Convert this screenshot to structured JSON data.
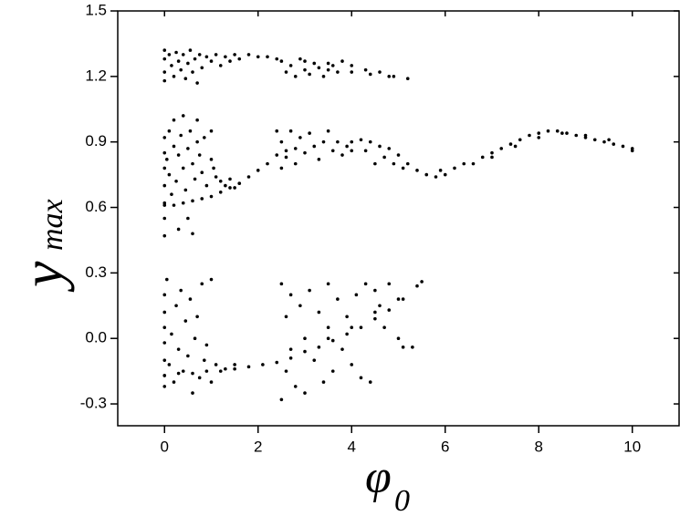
{
  "chart_data": {
    "type": "scatter",
    "xlabel": {
      "text": "φ",
      "subscript": "0"
    },
    "ylabel": {
      "text": "y",
      "subscript": "max"
    },
    "color": "#000000",
    "xlim": [
      -1,
      11
    ],
    "xticks": [
      0,
      2,
      4,
      6,
      8,
      10
    ],
    "ylim": [
      -0.4,
      1.5
    ],
    "yticks": [
      -0.3,
      {
        "value": 0,
        "label": "0.0"
      },
      0.3,
      0.6,
      0.9,
      1.2,
      1.5
    ],
    "x": [
      0,
      0,
      0,
      0,
      0.1,
      0.15,
      0.2,
      0.25,
      0.3,
      0.35,
      0.4,
      0.45,
      0.5,
      0.55,
      0.6,
      0.65,
      0.7,
      0.75,
      0.8,
      0.9,
      1.0,
      1.1,
      1.2,
      1.3,
      1.4,
      1.5,
      1.6,
      1.8,
      2.0,
      2.2,
      2.4,
      3.0,
      3.5,
      4.0,
      4.3,
      4.6,
      4.9,
      5.2,
      4.0,
      4.4,
      4.8,
      2.5,
      2.6,
      2.7,
      2.8,
      2.9,
      3.0,
      3.1,
      3.2,
      3.3,
      3.4,
      3.5,
      3.6,
      3.7,
      3.8,
      0,
      0,
      0,
      0,
      0,
      0,
      0,
      0.05,
      0.1,
      0.1,
      0.15,
      0.2,
      0.2,
      0.25,
      0.3,
      0.3,
      0.35,
      0.4,
      0.4,
      0.45,
      0.5,
      0.5,
      0.55,
      0.6,
      0.6,
      0.65,
      0.7,
      0.7,
      0.75,
      0.8,
      0.85,
      0.9,
      1.0,
      1.0,
      1.05,
      1.1,
      1.2,
      1.3,
      1.4,
      1.5,
      1.6,
      0,
      0.2,
      0.4,
      0.6,
      0.8,
      1.0,
      1.2,
      1.4,
      1.6,
      1.8,
      2.0,
      2.2,
      2.4,
      2.6,
      2.4,
      2.5,
      2.5,
      2.6,
      2.7,
      2.8,
      2.8,
      2.9,
      3.0,
      3.1,
      3.2,
      3.3,
      3.4,
      3.5,
      3.6,
      3.7,
      3.8,
      3.9,
      4.0,
      4.0,
      4.2,
      4.4,
      4.6,
      4.8,
      5.0,
      5.2,
      5.4,
      4.3,
      4.5,
      4.7,
      4.9,
      5.1,
      5.6,
      5.8,
      5.9,
      6.0,
      6.2,
      6.4,
      6.6,
      6.8,
      7.0,
      7.2,
      7.4,
      7.6,
      7.8,
      8.0,
      8.2,
      8.4,
      8.6,
      8.8,
      9.0,
      9.2,
      9.4,
      9.6,
      9.8,
      10.0,
      7.0,
      7.5,
      8.0,
      8.5,
      9.0,
      9.5,
      10.0,
      0,
      0,
      0,
      0,
      0,
      0,
      0,
      0.05,
      0.1,
      0.15,
      0.2,
      0.25,
      0.3,
      0.35,
      0.4,
      0.45,
      0.5,
      0.55,
      0.6,
      0.65,
      0.7,
      0.75,
      0.8,
      0.85,
      0.9,
      1.0,
      1.0,
      1.1,
      1.3,
      1.5,
      0,
      0.3,
      0.6,
      0.9,
      1.2,
      1.5,
      1.8,
      2.1,
      2.4,
      2.7,
      3.0,
      3.3,
      3.6,
      3.9,
      4.2,
      4.5,
      4.8,
      5.1,
      5.4,
      5.5,
      3.5,
      4.0,
      4.5,
      5.0,
      2.5,
      2.5,
      2.6,
      2.6,
      2.7,
      2.7,
      2.8,
      2.9,
      3.0,
      3.0,
      3.1,
      3.2,
      3.3,
      3.4,
      3.5,
      3.5,
      3.6,
      3.7,
      3.8,
      3.9,
      4.0,
      4.1,
      4.2,
      4.3,
      4.4,
      4.5,
      4.6,
      4.7,
      4.8,
      5.0,
      5.3,
      5.1
    ],
    "values": [
      1.32,
      1.28,
      1.22,
      1.18,
      1.3,
      1.25,
      1.2,
      1.31,
      1.27,
      1.23,
      1.3,
      1.19,
      1.26,
      1.32,
      1.22,
      1.28,
      1.17,
      1.3,
      1.24,
      1.29,
      1.27,
      1.3,
      1.25,
      1.29,
      1.27,
      1.3,
      1.28,
      1.3,
      1.29,
      1.29,
      1.28,
      1.27,
      1.26,
      1.25,
      1.23,
      1.22,
      1.2,
      1.19,
      1.22,
      1.21,
      1.2,
      1.27,
      1.22,
      1.25,
      1.2,
      1.28,
      1.23,
      1.21,
      1.26,
      1.24,
      1.2,
      1.23,
      1.25,
      1.22,
      1.27,
      0.47,
      0.55,
      0.62,
      0.7,
      0.78,
      0.85,
      0.92,
      0.82,
      0.75,
      0.95,
      0.66,
      0.88,
      1.0,
      0.72,
      0.84,
      0.5,
      0.93,
      0.78,
      1.02,
      0.68,
      0.87,
      0.55,
      0.95,
      0.8,
      0.48,
      0.73,
      0.9,
      1.0,
      0.84,
      0.76,
      0.92,
      0.7,
      0.82,
      0.95,
      0.78,
      0.74,
      0.72,
      0.7,
      0.73,
      0.69,
      0.71,
      0.61,
      0.61,
      0.62,
      0.63,
      0.64,
      0.65,
      0.67,
      0.69,
      0.71,
      0.74,
      0.77,
      0.8,
      0.84,
      0.86,
      0.95,
      0.78,
      0.9,
      0.83,
      0.95,
      0.87,
      0.8,
      0.92,
      0.85,
      0.94,
      0.88,
      0.82,
      0.9,
      0.95,
      0.86,
      0.9,
      0.84,
      0.88,
      0.86,
      0.9,
      0.91,
      0.9,
      0.88,
      0.87,
      0.84,
      0.8,
      0.77,
      0.86,
      0.8,
      0.83,
      0.8,
      0.78,
      0.75,
      0.74,
      0.77,
      0.75,
      0.78,
      0.8,
      0.8,
      0.83,
      0.85,
      0.87,
      0.89,
      0.91,
      0.93,
      0.94,
      0.95,
      0.95,
      0.94,
      0.93,
      0.92,
      0.91,
      0.9,
      0.89,
      0.88,
      0.87,
      0.83,
      0.88,
      0.92,
      0.94,
      0.93,
      0.91,
      0.86,
      -0.22,
      -0.17,
      -0.1,
      -0.02,
      0.05,
      0.12,
      0.2,
      0.27,
      -0.12,
      0.02,
      -0.2,
      0.15,
      -0.05,
      0.22,
      -0.15,
      0.08,
      -0.08,
      0.18,
      -0.25,
      0.0,
      0.1,
      -0.18,
      0.25,
      -0.1,
      -0.03,
      0.27,
      -0.2,
      -0.12,
      -0.14,
      -0.12,
      -0.17,
      -0.16,
      -0.16,
      -0.15,
      -0.15,
      -0.14,
      -0.13,
      -0.12,
      -0.11,
      -0.09,
      -0.06,
      -0.04,
      -0.01,
      0.02,
      0.05,
      0.09,
      0.13,
      0.18,
      0.24,
      0.26,
      0.0,
      0.05,
      0.12,
      0.18,
      0.25,
      -0.28,
      0.1,
      -0.15,
      0.2,
      -0.05,
      -0.22,
      0.15,
      0.0,
      -0.25,
      0.22,
      -0.1,
      0.12,
      -0.2,
      0.25,
      0.05,
      -0.15,
      0.18,
      -0.05,
      0.1,
      -0.12,
      0.2,
      -0.18,
      0.25,
      -0.2,
      0.22,
      0.15,
      0.05,
      0.25,
      0.0,
      -0.04,
      -0.04
    ]
  }
}
